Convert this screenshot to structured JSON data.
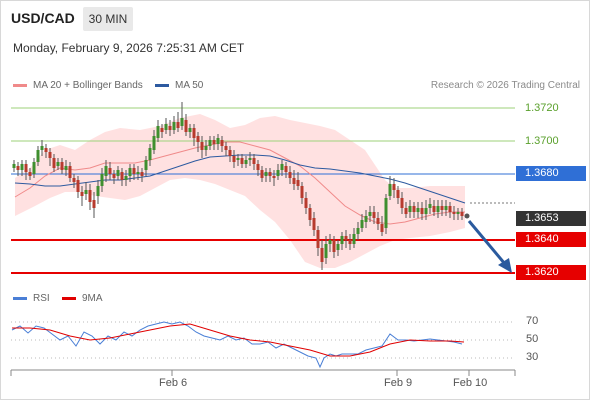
{
  "header": {
    "symbol": "USD/CAD",
    "timeframe": "30 MIN",
    "datetime": "Monday, February 9, 2026 7:25:31 AM CET"
  },
  "legend": {
    "ma20": {
      "label": "MA 20 + Bollinger Bands",
      "color": "#f08a8a"
    },
    "ma50": {
      "label": "MA 50",
      "color": "#2d5aa0"
    },
    "rsi": {
      "label": "RSI",
      "color": "#4a7fd6"
    },
    "ma9": {
      "label": "9MA",
      "color": "#e00000"
    }
  },
  "copyright": "Research © 2026 Trading Central",
  "levels": {
    "r2": "1.3720",
    "r1": "1.3700",
    "pivot": "1.3680",
    "last": "1.3653",
    "s1": "1.3640",
    "s2": "1.3620"
  },
  "rsi_axis": {
    "t70": "70",
    "t50": "50",
    "t30": "30"
  },
  "xaxis": {
    "feb6": "Feb 6",
    "feb9": "Feb 9",
    "feb10": "Feb 10"
  },
  "colors": {
    "green_level": "#5aa02c",
    "pivot": "#2f6fd6",
    "support": "#e60000",
    "last": "#333333"
  }
}
